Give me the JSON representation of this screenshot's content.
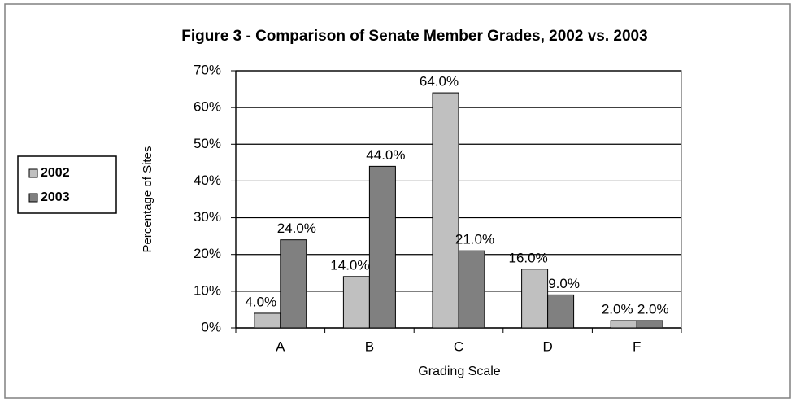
{
  "chart_data": {
    "type": "bar",
    "title": "Figure 3 - Comparison of Senate Member Grades, 2002 vs. 2003",
    "x_label": "Grading Scale",
    "y_label": "Percentage of Sites",
    "categories": [
      "A",
      "B",
      "C",
      "D",
      "F"
    ],
    "series": [
      {
        "name": "2002",
        "color": "#c0c0c0",
        "values": [
          4,
          14,
          64,
          16,
          2
        ],
        "value_labels": [
          "4.0%",
          "14.0%",
          "64.0%",
          "16.0%",
          "2.0%"
        ]
      },
      {
        "name": "2003",
        "color": "#808080",
        "values": [
          24,
          44,
          21,
          9,
          2
        ],
        "value_labels": [
          "24.0%",
          "44.0%",
          "21.0%",
          "9.0%",
          "2.0%"
        ]
      }
    ],
    "ylim": [
      0,
      70
    ],
    "yticks": [
      {
        "value": 0,
        "label": "0%"
      },
      {
        "value": 10,
        "label": "10%"
      },
      {
        "value": 20,
        "label": "20%"
      },
      {
        "value": 30,
        "label": "30%"
      },
      {
        "value": 40,
        "label": "40%"
      },
      {
        "value": 50,
        "label": "50%"
      },
      {
        "value": 60,
        "label": "60%"
      },
      {
        "value": 70,
        "label": "70%"
      }
    ],
    "grid": true,
    "legend": "left"
  }
}
